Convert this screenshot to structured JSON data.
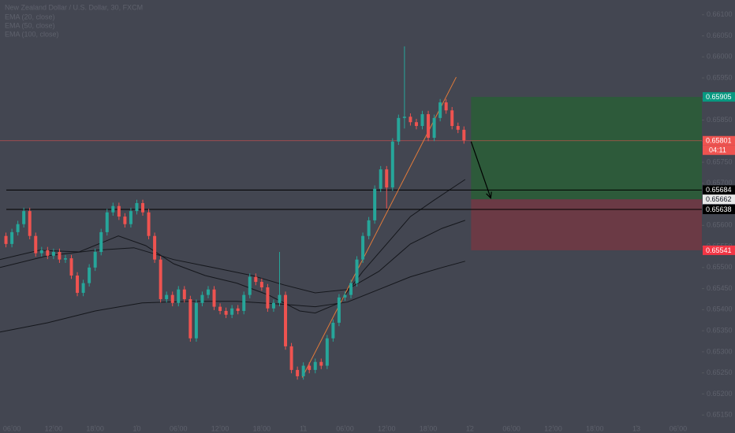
{
  "chart_data": {
    "type": "candlestick",
    "title": "New Zealand Dollar / U.S. Dollar, 30, FXCM",
    "countdown": "04:11",
    "up_color": "#26a69a",
    "down_color": "#ef5350",
    "x": [
      1,
      2,
      3,
      4,
      5,
      6,
      7,
      8,
      9,
      10,
      11,
      12,
      13,
      14,
      15,
      16,
      17,
      18,
      19,
      20,
      21,
      22,
      23,
      24,
      25,
      26,
      27,
      28,
      29,
      30,
      31,
      32,
      33,
      34,
      35,
      36,
      37,
      38,
      39,
      40,
      41,
      42,
      43,
      44,
      45,
      46,
      47,
      48,
      49,
      50,
      51,
      52,
      53,
      54,
      55,
      56,
      57,
      58,
      59,
      60,
      61,
      62,
      63,
      64,
      65,
      66,
      67,
      68,
      69,
      70,
      71,
      72,
      73,
      74,
      75,
      76,
      77,
      78
    ],
    "open": [
      0.65575,
      0.65556,
      0.65584,
      0.65603,
      0.65634,
      0.65575,
      0.65534,
      0.65541,
      0.65528,
      0.65537,
      0.65519,
      0.65522,
      0.65481,
      0.6544,
      0.65463,
      0.655,
      0.65537,
      0.65584,
      0.65631,
      0.65646,
      0.65621,
      0.65603,
      0.65634,
      0.65653,
      0.65631,
      0.65575,
      0.65519,
      0.65425,
      0.65435,
      0.65416,
      0.65448,
      0.65425,
      0.65332,
      0.65416,
      0.65435,
      0.65448,
      0.65407,
      0.65397,
      0.65388,
      0.65403,
      0.65397,
      0.65435,
      0.65478,
      0.65466,
      0.65453,
      0.65403,
      0.65416,
      0.65435,
      0.65313,
      0.65257,
      0.65242,
      0.65267,
      0.65257,
      0.65276,
      0.65267,
      0.65332,
      0.65369,
      0.65429,
      0.65435,
      0.65463,
      0.65519,
      0.65575,
      0.65612,
      0.65687,
      0.65733,
      0.6569,
      0.65799,
      0.65855,
      0.65858,
      0.65845,
      0.65836,
      0.65864,
      0.65808,
      0.65855,
      0.65892,
      0.65873,
      0.65836,
      0.65827
    ],
    "high": [
      0.65583,
      0.65592,
      0.65611,
      0.65642,
      0.65642,
      0.65583,
      0.65549,
      0.65549,
      0.65545,
      0.65545,
      0.6553,
      0.6553,
      0.65489,
      0.65471,
      0.65508,
      0.65545,
      0.65592,
      0.65639,
      0.65654,
      0.65654,
      0.65629,
      0.65642,
      0.65661,
      0.65661,
      0.65639,
      0.65583,
      0.65527,
      0.65443,
      0.65443,
      0.65456,
      0.65456,
      0.65433,
      0.65424,
      0.65443,
      0.65456,
      0.65456,
      0.65415,
      0.65405,
      0.65411,
      0.65411,
      0.65443,
      0.65486,
      0.65486,
      0.65474,
      0.65461,
      0.65424,
      0.65537,
      0.65443,
      0.65321,
      0.65265,
      0.65275,
      0.65275,
      0.65284,
      0.65284,
      0.6534,
      0.65377,
      0.65437,
      0.65443,
      0.65471,
      0.65527,
      0.65583,
      0.6562,
      0.65695,
      0.65741,
      0.65741,
      0.65807,
      0.65863,
      0.66025,
      0.65866,
      0.65853,
      0.65872,
      0.65872,
      0.65863,
      0.659,
      0.659,
      0.65881,
      0.65844,
      0.65835
    ],
    "low": [
      0.65548,
      0.65548,
      0.65576,
      0.65595,
      0.65567,
      0.65526,
      0.65526,
      0.6552,
      0.6552,
      0.65511,
      0.65511,
      0.65473,
      0.65432,
      0.65432,
      0.65455,
      0.65492,
      0.65529,
      0.65576,
      0.65623,
      0.65613,
      0.65595,
      0.65595,
      0.65626,
      0.65623,
      0.65567,
      0.65511,
      0.65417,
      0.65417,
      0.65408,
      0.65408,
      0.65417,
      0.65324,
      0.65324,
      0.65408,
      0.65427,
      0.65399,
      0.65389,
      0.6538,
      0.6538,
      0.65389,
      0.65389,
      0.65427,
      0.65458,
      0.65445,
      0.65395,
      0.65395,
      0.65408,
      0.65305,
      0.65249,
      0.65234,
      0.65234,
      0.65249,
      0.65249,
      0.65259,
      0.65259,
      0.65324,
      0.65361,
      0.65421,
      0.65427,
      0.65455,
      0.65511,
      0.65567,
      0.65604,
      0.65679,
      0.6564,
      0.65682,
      0.65791,
      0.6583,
      0.65837,
      0.65828,
      0.65828,
      0.658,
      0.658,
      0.65847,
      0.65865,
      0.65828,
      0.65819,
      0.65794
    ],
    "close": [
      0.65556,
      0.65584,
      0.65603,
      0.65634,
      0.65575,
      0.65534,
      0.65541,
      0.65528,
      0.65537,
      0.65519,
      0.65522,
      0.65481,
      0.6544,
      0.65463,
      0.655,
      0.65537,
      0.65584,
      0.65631,
      0.65646,
      0.65621,
      0.65603,
      0.65634,
      0.65653,
      0.65631,
      0.65575,
      0.65519,
      0.65425,
      0.65435,
      0.65416,
      0.65448,
      0.65425,
      0.65332,
      0.65416,
      0.65435,
      0.65448,
      0.65407,
      0.65397,
      0.65388,
      0.65403,
      0.65397,
      0.65435,
      0.65478,
      0.65466,
      0.65453,
      0.65403,
      0.65416,
      0.65435,
      0.65313,
      0.65257,
      0.65242,
      0.65267,
      0.65257,
      0.65276,
      0.65267,
      0.65332,
      0.65369,
      0.65429,
      0.65435,
      0.65463,
      0.65519,
      0.65575,
      0.65612,
      0.65687,
      0.65733,
      0.6569,
      0.65799,
      0.65855,
      0.65858,
      0.65845,
      0.65836,
      0.65864,
      0.65808,
      0.65855,
      0.65892,
      0.65873,
      0.65836,
      0.65827,
      0.65802
    ],
    "indicators": [
      {
        "name": "EMA (20, close)",
        "color": "#15171c",
        "x": [
          0,
          6.6,
          13.3,
          19.9,
          24.5,
          29.2,
          34.5,
          39.8,
          45.1,
          50.4,
          53,
          57,
          61,
          65,
          69,
          72.9,
          78.2
        ],
        "values": [
          0.65519,
          0.65541,
          0.65537,
          0.65575,
          0.65552,
          0.65509,
          0.65481,
          0.65463,
          0.65435,
          0.65397,
          0.65392,
          0.65416,
          0.65491,
          0.65556,
          0.65621,
          0.65659,
          0.65709
        ]
      },
      {
        "name": "EMA (50, close)",
        "color": "#15171c",
        "x": [
          0,
          8,
          16,
          22.5,
          29.2,
          35.8,
          42.4,
          47.7,
          53,
          58.4,
          63.7,
          69,
          74.3,
          78.2
        ],
        "values": [
          0.655,
          0.65528,
          0.65541,
          0.65547,
          0.65519,
          0.655,
          0.65481,
          0.65459,
          0.6544,
          0.65448,
          0.65491,
          0.65556,
          0.65593,
          0.65612
        ]
      },
      {
        "name": "EMA (100, close)",
        "color": "#15171c",
        "x": [
          0,
          8,
          16,
          23.9,
          31.8,
          39.8,
          46.4,
          53,
          58.4,
          63.7,
          69,
          74.3,
          78.2
        ],
        "values": [
          0.65347,
          0.65369,
          0.65397,
          0.65416,
          0.6542,
          0.6542,
          0.65414,
          0.65407,
          0.65418,
          0.65448,
          0.65478,
          0.655,
          0.65515
        ]
      }
    ],
    "last_price": 0.65801,
    "last_price_color": "#ef5350",
    "hlines": [
      0.65684,
      0.65638
    ],
    "hline_color": "#000000",
    "trendline": {
      "x": [
        50.8,
        76.7
      ],
      "values": [
        0.65239,
        0.65952
      ],
      "color": "#e07a3a"
    },
    "arrow": {
      "x": [
        79.2,
        82.5
      ],
      "values": [
        0.65799,
        0.65665
      ],
      "color": "#000000"
    },
    "position": {
      "x": [
        79.2,
        118
      ],
      "target": 0.65905,
      "entry": 0.65662,
      "stop": 0.65541,
      "target_color": "#2d5a3a",
      "stop_color": "#6b3a45",
      "target_label_color": "#089981",
      "stop_label_color": "#f23645"
    },
    "xlim": [
      0,
      118
    ],
    "ylim": [
      0.65126,
      0.66135
    ],
    "xticks": [
      {
        "value": 2,
        "label": "06:00"
      },
      {
        "value": 9,
        "label": "12:00"
      },
      {
        "value": 16,
        "label": "18:00"
      },
      {
        "value": 23,
        "label": "10"
      },
      {
        "value": 30,
        "label": "06:00"
      },
      {
        "value": 37,
        "label": "12:00"
      },
      {
        "value": 44,
        "label": "18:00"
      },
      {
        "value": 51,
        "label": "11"
      },
      {
        "value": 58,
        "label": "06:00"
      },
      {
        "value": 65,
        "label": "12:00"
      },
      {
        "value": 72,
        "label": "18:00"
      },
      {
        "value": 79,
        "label": "12"
      },
      {
        "value": 86,
        "label": "06:00"
      },
      {
        "value": 93,
        "label": "12:00"
      },
      {
        "value": 100,
        "label": "18:00"
      },
      {
        "value": 107,
        "label": "13"
      },
      {
        "value": 114,
        "label": "06:00"
      }
    ],
    "yticks": [
      {
        "value": 0.6515,
        "label": "0.65150"
      },
      {
        "value": 0.652,
        "label": "0.65200"
      },
      {
        "value": 0.6525,
        "label": "0.65250"
      },
      {
        "value": 0.653,
        "label": "0.65300"
      },
      {
        "value": 0.6535,
        "label": "0.65350"
      },
      {
        "value": 0.654,
        "label": "0.65400"
      },
      {
        "value": 0.6545,
        "label": "0.65450"
      },
      {
        "value": 0.655,
        "label": "0.65500"
      },
      {
        "value": 0.6555,
        "label": "0.65550"
      },
      {
        "value": 0.656,
        "label": "0.65600"
      },
      {
        "value": 0.6565,
        "label": "0.65650"
      },
      {
        "value": 0.657,
        "label": "0.65700"
      },
      {
        "value": 0.6575,
        "label": "0.65750"
      },
      {
        "value": 0.658,
        "label": "0.65800"
      },
      {
        "value": 0.6585,
        "label": "0.65850"
      },
      {
        "value": 0.659,
        "label": "0.65900"
      },
      {
        "value": 0.6595,
        "label": "0.65950"
      },
      {
        "value": 0.66,
        "label": "0.66000"
      },
      {
        "value": 0.6605,
        "label": "0.66050"
      },
      {
        "value": 0.661,
        "label": "0.66100"
      }
    ]
  }
}
